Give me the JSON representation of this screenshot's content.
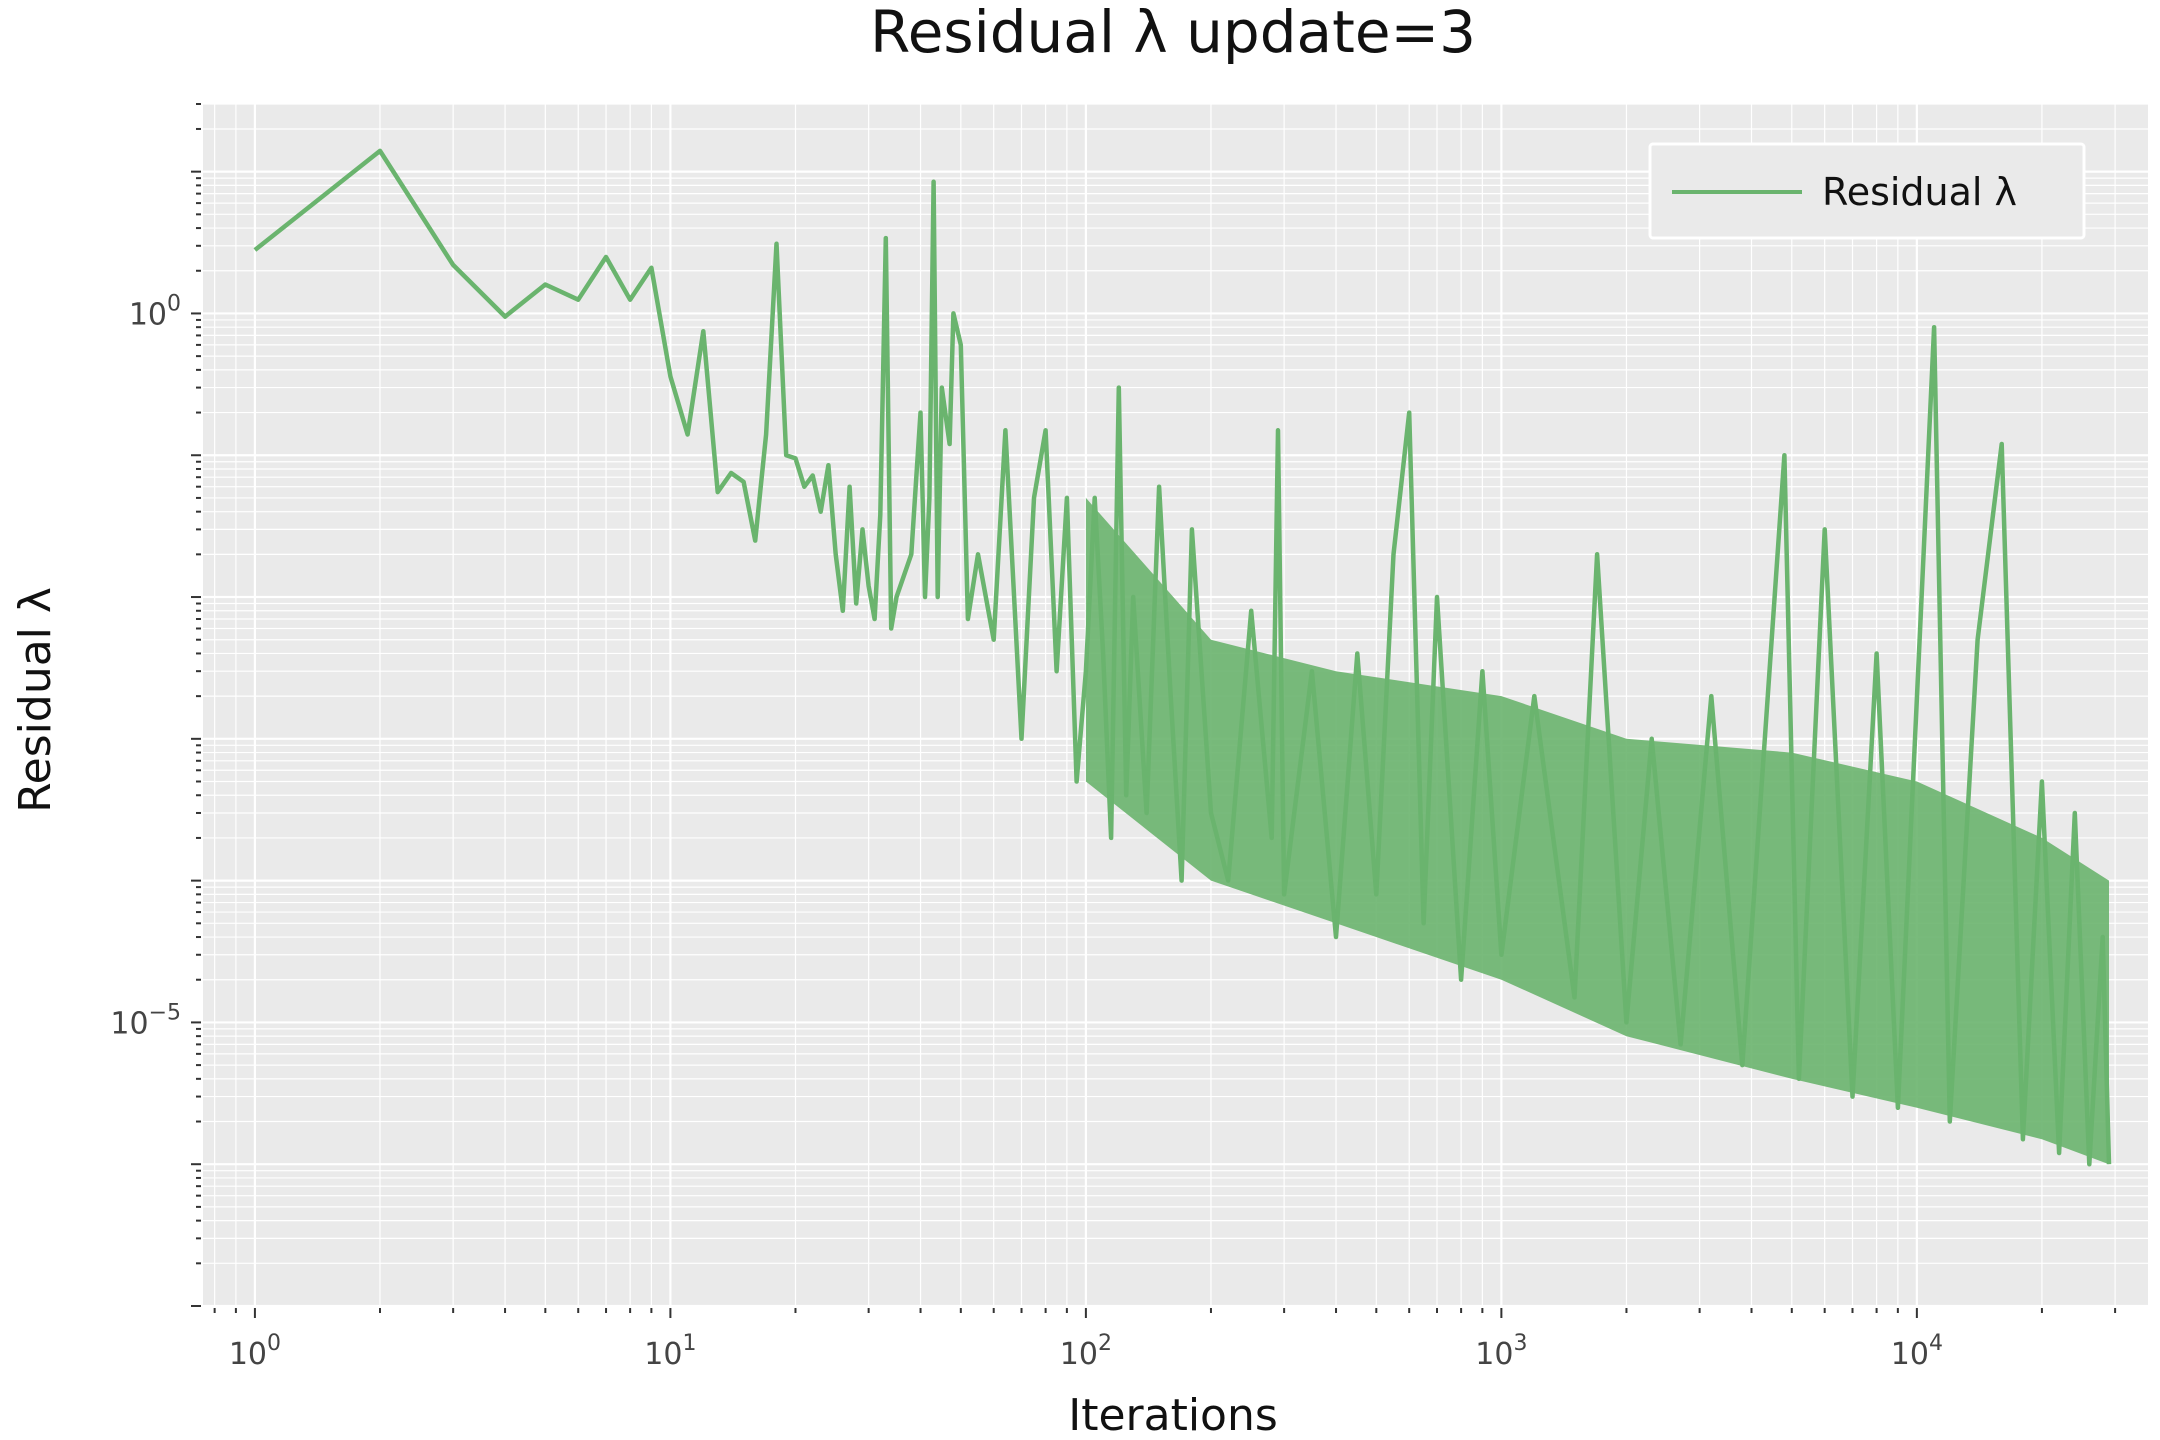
{
  "chart_data": {
    "type": "line",
    "title": "Residual λ update=3",
    "xlabel": "Iterations",
    "ylabel": "Residual λ",
    "x_scale": "log",
    "y_scale": "log",
    "xlim": [
      0.75,
      36000
    ],
    "ylim": [
      1e-07,
      30
    ],
    "grid": true,
    "legend_position": "top-right",
    "x_ticks": [
      {
        "value": 1,
        "base": "10",
        "exp": "0"
      },
      {
        "value": 10,
        "base": "10",
        "exp": "1"
      },
      {
        "value": 100,
        "base": "10",
        "exp": "2"
      },
      {
        "value": 1000,
        "base": "10",
        "exp": "3"
      },
      {
        "value": 10000,
        "base": "10",
        "exp": "4"
      }
    ],
    "y_ticks": [
      {
        "value": 1e-05,
        "base": "10",
        "exp": "−5"
      },
      {
        "value": 1,
        "base": "10",
        "exp": "0"
      }
    ],
    "series": [
      {
        "name": "Residual λ",
        "color": "#6ab46e",
        "points": [
          [
            1,
            2.8
          ],
          [
            2,
            14
          ],
          [
            3,
            2.2
          ],
          [
            4,
            0.95
          ],
          [
            5,
            1.6
          ],
          [
            6,
            1.25
          ],
          [
            7,
            2.5
          ],
          [
            8,
            1.25
          ],
          [
            9,
            2.1
          ],
          [
            10,
            0.36
          ],
          [
            11,
            0.14
          ],
          [
            12,
            0.75
          ],
          [
            13,
            0.055
          ],
          [
            14,
            0.075
          ],
          [
            15,
            0.065
          ],
          [
            16,
            0.025
          ],
          [
            17,
            0.14
          ],
          [
            18,
            3.1
          ],
          [
            19,
            0.1
          ],
          [
            20,
            0.095
          ],
          [
            21,
            0.06
          ],
          [
            22,
            0.072
          ],
          [
            23,
            0.04
          ],
          [
            24,
            0.085
          ],
          [
            25,
            0.02
          ],
          [
            26,
            0.008
          ],
          [
            27,
            0.06
          ],
          [
            28,
            0.009
          ],
          [
            29,
            0.03
          ],
          [
            30,
            0.012
          ],
          [
            31,
            0.007
          ],
          [
            32,
            0.038
          ],
          [
            33,
            3.4
          ],
          [
            34,
            0.006
          ],
          [
            35,
            0.01
          ],
          [
            38,
            0.02
          ],
          [
            40,
            0.2
          ],
          [
            41,
            0.01
          ],
          [
            42,
            0.05
          ],
          [
            43,
            8.5
          ],
          [
            44,
            0.01
          ],
          [
            45,
            0.3
          ],
          [
            47,
            0.12
          ],
          [
            48,
            1.0
          ],
          [
            50,
            0.6
          ],
          [
            52,
            0.007
          ],
          [
            55,
            0.02
          ],
          [
            60,
            0.005
          ],
          [
            64,
            0.15
          ],
          [
            70,
            0.001
          ],
          [
            75,
            0.05
          ],
          [
            80,
            0.15
          ],
          [
            85,
            0.003
          ],
          [
            90,
            0.05
          ],
          [
            95,
            0.0005
          ],
          [
            100,
            0.003
          ],
          [
            105,
            0.05
          ],
          [
            110,
            0.004
          ],
          [
            115,
            0.0002
          ],
          [
            120,
            0.3
          ],
          [
            125,
            0.0004
          ],
          [
            130,
            0.01
          ],
          [
            140,
            0.0003
          ],
          [
            150,
            0.06
          ],
          [
            160,
            0.002
          ],
          [
            170,
            0.0001
          ],
          [
            180,
            0.03
          ],
          [
            200,
            0.0003
          ],
          [
            220,
            0.0001
          ],
          [
            250,
            0.008
          ],
          [
            280,
            0.0002
          ],
          [
            290,
            0.15
          ],
          [
            300,
            8e-05
          ],
          [
            350,
            0.003
          ],
          [
            400,
            4e-05
          ],
          [
            450,
            0.004
          ],
          [
            500,
            8e-05
          ],
          [
            550,
            0.02
          ],
          [
            600,
            0.2
          ],
          [
            650,
            5e-05
          ],
          [
            700,
            0.01
          ],
          [
            800,
            2e-05
          ],
          [
            900,
            0.003
          ],
          [
            1000,
            3e-05
          ],
          [
            1200,
            0.002
          ],
          [
            1500,
            1.5e-05
          ],
          [
            1700,
            0.02
          ],
          [
            2000,
            1e-05
          ],
          [
            2300,
            0.001
          ],
          [
            2700,
            7e-06
          ],
          [
            3200,
            0.002
          ],
          [
            3800,
            5e-06
          ],
          [
            4800,
            0.1
          ],
          [
            5200,
            4e-06
          ],
          [
            6000,
            0.03
          ],
          [
            7000,
            3e-06
          ],
          [
            8000,
            0.004
          ],
          [
            9000,
            2.5e-06
          ],
          [
            11000,
            0.8
          ],
          [
            12000,
            2e-06
          ],
          [
            14000,
            0.005
          ],
          [
            16000,
            0.12
          ],
          [
            18000,
            1.5e-06
          ],
          [
            20000,
            0.0005
          ],
          [
            22000,
            1.2e-06
          ],
          [
            24000,
            0.0003
          ],
          [
            26000,
            1e-06
          ],
          [
            28000,
            4e-05
          ],
          [
            29000,
            1e-06
          ]
        ],
        "band": {
          "x": [
            100,
            200,
            400,
            1000,
            2000,
            5000,
            10000,
            20000,
            29000
          ],
          "upper": [
            0.05,
            0.005,
            0.003,
            0.002,
            0.001,
            0.0008,
            0.0005,
            0.0002,
            0.0001
          ],
          "lower": [
            0.0005,
            0.0001,
            5e-05,
            2e-05,
            8e-06,
            4e-06,
            2.5e-06,
            1.5e-06,
            1e-06
          ]
        }
      }
    ]
  }
}
